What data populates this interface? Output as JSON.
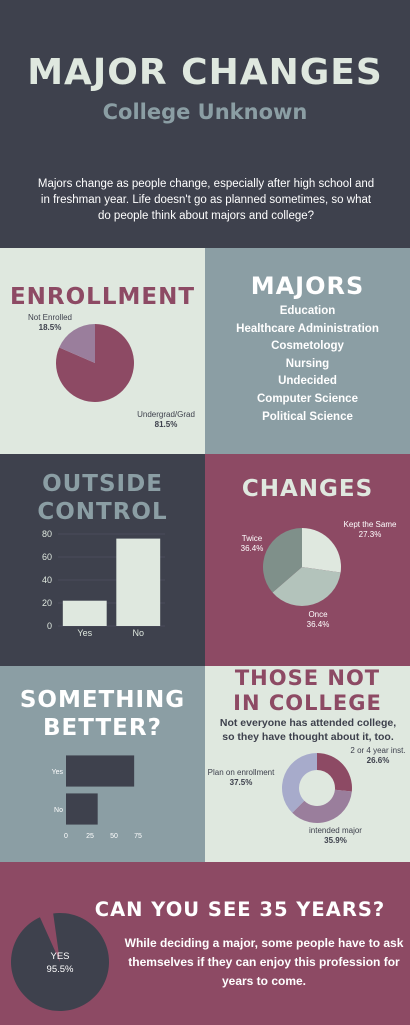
{
  "header": {
    "title": "MAJOR CHANGES",
    "subtitle": "College Unknown",
    "intro": "Majors change as people change, especially after high school and in freshman year. Life doesn't go as planned sometimes, so what do people think about majors and college?"
  },
  "enrollment": {
    "heading": "ENROLLMENT",
    "chart_data": {
      "type": "pie",
      "labels": [
        "Not Enrolled",
        "Undergrad/Grad"
      ],
      "values": [
        18.5,
        81.5
      ],
      "value_labels": [
        "18.5%",
        "81.5%"
      ],
      "colors": [
        "#9a7e9c",
        "#8d4a64"
      ]
    }
  },
  "majors": {
    "heading": "MAJORS",
    "items": [
      "Education",
      "Healthcare Administration",
      "Cosmetology",
      "Nursing",
      "Undecided",
      "Computer Science",
      "Political Science"
    ]
  },
  "outside_control": {
    "heading_line1": "OUTSIDE",
    "heading_line2": "CONTROL",
    "chart_data": {
      "type": "bar",
      "categories": [
        "Yes",
        "No"
      ],
      "values": [
        22,
        76
      ],
      "ylim": [
        0,
        80
      ],
      "yticks": [
        "0",
        "20",
        "40",
        "60",
        "80"
      ],
      "color": "#dfe8df"
    }
  },
  "changes": {
    "heading": "CHANGES",
    "chart_data": {
      "type": "pie",
      "labels": [
        "Kept the Same",
        "Once",
        "Twice"
      ],
      "values": [
        27.3,
        36.4,
        36.4
      ],
      "value_labels": [
        "27.3%",
        "36.4%",
        "36.4%"
      ],
      "colors": [
        "#dfe8df",
        "#b3c3bb",
        "#7f908a"
      ]
    }
  },
  "something_better": {
    "heading_line1": "SOMETHING",
    "heading_line2": "BETTER?",
    "chart_data": {
      "type": "bar",
      "orientation": "horizontal",
      "categories": [
        "Yes",
        "No"
      ],
      "values": [
        71,
        33
      ],
      "xlim": [
        0,
        75
      ],
      "xticks": [
        "0",
        "25",
        "50",
        "75"
      ],
      "color": "#3e414d"
    }
  },
  "not_in_college": {
    "heading_line1": "THOSE NOT",
    "heading_line2": "IN COLLEGE",
    "text": "Not everyone has attended college, so they have thought about it, too.",
    "chart_data": {
      "type": "pie",
      "donut": true,
      "labels": [
        "2 or 4 year inst.",
        "intended major",
        "Plan on enrollment"
      ],
      "values": [
        26.6,
        35.9,
        37.5
      ],
      "value_labels": [
        "26.6%",
        "35.9%",
        "37.5%"
      ],
      "colors": [
        "#8d4a64",
        "#9a7e9c",
        "#a7abcb"
      ]
    }
  },
  "thirty_five": {
    "heading": "CAN YOU SEE 35 YEARS?",
    "text": "While deciding a major, some people have to ask themselves if they can enjoy this profession for years to come.",
    "chart_data": {
      "type": "pie",
      "labels": [
        "YES"
      ],
      "values": [
        95.5
      ],
      "value_labels": [
        "95.5%"
      ],
      "colors": [
        "#3e414d"
      ]
    }
  },
  "colors": {
    "dark": "#3e414d",
    "mauve": "#8d4a64",
    "slate": "#8b9ea4",
    "mint": "#dfe8df"
  }
}
